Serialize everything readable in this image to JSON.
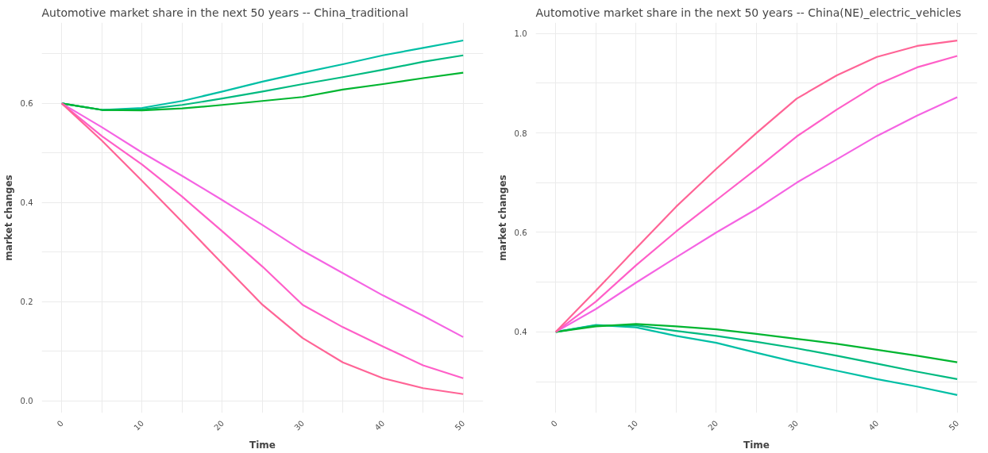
{
  "chart_data": [
    {
      "type": "line",
      "title": "Automotive market share in the next 50 years -- China_traditional",
      "xlabel": "Time",
      "ylabel": "market changes",
      "x": [
        0,
        5,
        10,
        15,
        20,
        25,
        30,
        35,
        40,
        45,
        50
      ],
      "xlim": [
        -2.5,
        52.5
      ],
      "ylim": [
        -0.024,
        0.763
      ],
      "xticks": [
        0,
        {
          "value": 5,
          "label": null
        },
        10,
        {
          "value": 15,
          "label": null
        },
        20,
        {
          "value": 25,
          "label": null
        },
        30,
        {
          "value": 35,
          "label": null
        },
        40,
        {
          "value": 45,
          "label": null
        },
        50
      ],
      "yticks": [
        "0.0",
        {
          "value": 0.1,
          "label": null
        },
        0.2,
        {
          "value": 0.3,
          "label": null
        },
        0.4,
        {
          "value": 0.5,
          "label": null
        },
        0.6,
        {
          "value": 0.7,
          "label": null
        }
      ],
      "grid": true,
      "line_style": "solid",
      "series": [
        {
          "color": "#00BFA5",
          "values": [
            0.6,
            0.587,
            0.591,
            0.605,
            0.624,
            0.644,
            0.662,
            0.679,
            0.697,
            0.712,
            0.727
          ]
        },
        {
          "color": "#00BA80",
          "values": [
            0.6,
            0.587,
            0.588,
            0.597,
            0.61,
            0.624,
            0.639,
            0.653,
            0.668,
            0.684,
            0.697
          ]
        },
        {
          "color": "#00B530",
          "values": [
            0.6,
            0.587,
            0.586,
            0.59,
            0.597,
            0.605,
            0.613,
            0.628,
            0.639,
            0.651,
            0.662
          ]
        },
        {
          "color": "#F564E3",
          "values": [
            0.6,
            0.552,
            0.501,
            0.454,
            0.405,
            0.355,
            0.303,
            0.258,
            0.213,
            0.172,
            0.129
          ]
        },
        {
          "color": "#FF5FC8",
          "values": [
            0.6,
            0.534,
            0.477,
            0.412,
            0.342,
            0.271,
            0.194,
            0.149,
            0.11,
            0.072,
            0.046
          ]
        },
        {
          "color": "#FF6496",
          "values": [
            0.6,
            0.525,
            0.444,
            0.361,
            0.277,
            0.194,
            0.127,
            0.078,
            0.046,
            0.026,
            0.014
          ]
        }
      ]
    },
    {
      "type": "line",
      "title": "Automotive market share in the next 50 years -- China(NE)_electric_vehicles",
      "xlabel": "Time",
      "ylabel": "market changes",
      "x": [
        0,
        5,
        10,
        15,
        20,
        25,
        30,
        35,
        40,
        45,
        50
      ],
      "xlim": [
        -2.5,
        52.5
      ],
      "ylim": [
        0.237,
        1.022
      ],
      "xticks": [
        0,
        {
          "value": 5,
          "label": null
        },
        10,
        {
          "value": 15,
          "label": null
        },
        20,
        {
          "value": 25,
          "label": null
        },
        30,
        {
          "value": 35,
          "label": null
        },
        40,
        {
          "value": 45,
          "label": null
        },
        50
      ],
      "yticks": [
        {
          "value": 0.3,
          "label": null
        },
        0.4,
        {
          "value": 0.5,
          "label": null
        },
        0.6,
        {
          "value": 0.7,
          "label": null
        },
        0.8,
        {
          "value": 0.9,
          "label": null
        },
        "1.0"
      ],
      "grid": true,
      "line_style": "solid",
      "series": [
        {
          "color": "#00BFA5",
          "values": [
            0.4,
            0.414,
            0.409,
            0.392,
            0.378,
            0.358,
            0.339,
            0.322,
            0.305,
            0.29,
            0.273
          ]
        },
        {
          "color": "#00BA80",
          "values": [
            0.4,
            0.413,
            0.413,
            0.402,
            0.392,
            0.38,
            0.367,
            0.352,
            0.336,
            0.32,
            0.305
          ]
        },
        {
          "color": "#00B530",
          "values": [
            0.4,
            0.411,
            0.416,
            0.411,
            0.405,
            0.396,
            0.386,
            0.376,
            0.364,
            0.352,
            0.339
          ]
        },
        {
          "color": "#F564E3",
          "values": [
            0.4,
            0.446,
            0.499,
            0.55,
            0.6,
            0.647,
            0.7,
            0.747,
            0.794,
            0.835,
            0.872
          ]
        },
        {
          "color": "#FF5FC8",
          "values": [
            0.4,
            0.461,
            0.534,
            0.602,
            0.665,
            0.728,
            0.793,
            0.847,
            0.897,
            0.932,
            0.955
          ]
        },
        {
          "color": "#FF6496",
          "values": [
            0.4,
            0.483,
            0.568,
            0.652,
            0.728,
            0.8,
            0.869,
            0.916,
            0.953,
            0.975,
            0.986
          ]
        }
      ]
    }
  ]
}
